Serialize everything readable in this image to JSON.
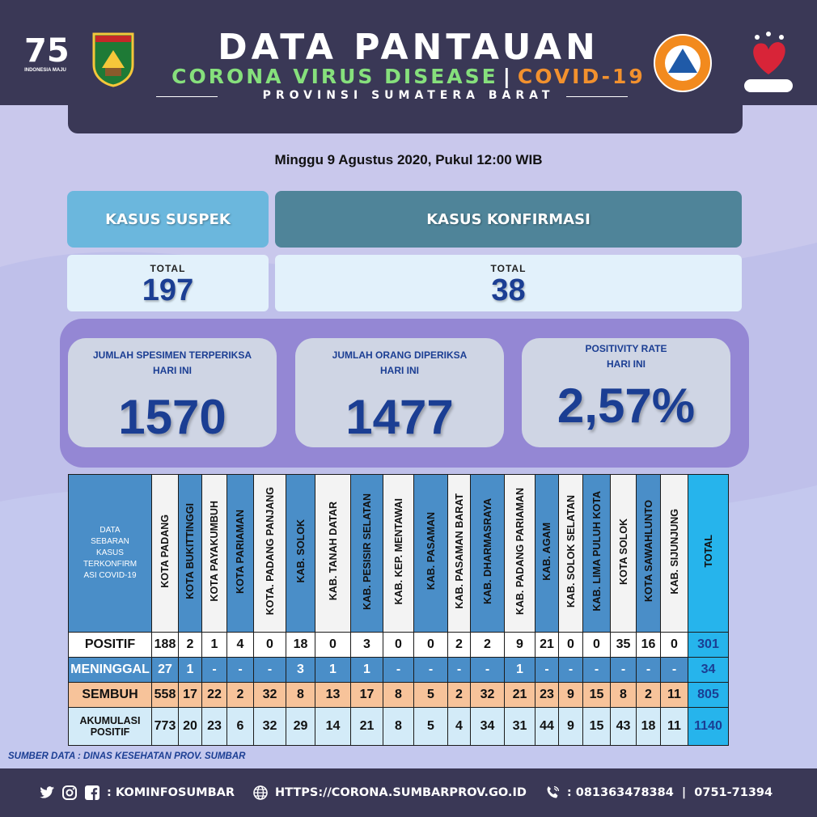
{
  "header": {
    "title": "DATA PANTAUAN",
    "subtitle_a": "CORONA VIRUS DISEASE",
    "subtitle_sep": "|",
    "subtitle_b": "COVID-19",
    "province": "PROVINSI SUMATERA BARAT",
    "logo_left_number": "75",
    "logo_left_caption": "INDONESIA MAJU",
    "logo_sumbar_caption": "SUMATERA BARAT",
    "logo_bpbd_caption": "BPBD",
    "logo_bbi_caption": "BANGGA BUATAN INDONESIA"
  },
  "date": "Minggu 9 Agustus 2020, Pukul 12:00 WIB",
  "suspek": {
    "label": "KASUS SUSPEK",
    "total_label": "TOTAL",
    "total": "197"
  },
  "konfirmasi": {
    "label": "KASUS KONFIRMASI",
    "total_label": "TOTAL",
    "total": "38"
  },
  "stats": [
    {
      "label1": "JUMLAH SPESIMEN TERPERIKSA",
      "label2": "HARI INI",
      "value": "1570"
    },
    {
      "label1": "JUMLAH ORANG DIPERIKSA",
      "label2": "HARI INI",
      "value": "1477"
    },
    {
      "label1": "POSITIVITY RATE",
      "label2": "HARI INI",
      "value": "2,57%"
    }
  ],
  "table": {
    "corner_lines": [
      "DATA",
      "SEBARAN",
      "KASUS",
      "TERKONFIRM",
      "ASI COVID-19"
    ],
    "regions": [
      "KOTA PADANG",
      "KOTA BUKITTINGGI",
      "KOTA PAYAKUMBUH",
      "KOTA PARIAMAN",
      "KOTA. PADANG PANJANG",
      "KAB. SOLOK",
      "KAB. TANAH DATAR",
      "KAB. PESISIR SELATAN",
      "KAB. KEP. MENTAWAI",
      "KAB. PASAMAN",
      "KAB. PASAMAN BARAT",
      "KAB. DHARMASRAYA",
      "KAB. PADANG PARIAMAN",
      "KAB. AGAM",
      "KAB. SOLOK SELATAN",
      "KAB. LIMA PULUH KOTA",
      "KOTA SOLOK",
      "KOTA SAWAHLUNTO",
      "KAB. SIJUNJUNG",
      "TOTAL"
    ],
    "rows": [
      {
        "label": "POSITIF",
        "values": [
          "188",
          "2",
          "1",
          "4",
          "0",
          "18",
          "0",
          "3",
          "0",
          "0",
          "2",
          "2",
          "9",
          "21",
          "0",
          "0",
          "35",
          "16",
          "0",
          "301"
        ]
      },
      {
        "label": "MENINGGAL",
        "values": [
          "27",
          "1",
          "-",
          "-",
          "-",
          "3",
          "1",
          "1",
          "-",
          "-",
          "-",
          "-",
          "1",
          "-",
          "-",
          "-",
          "-",
          "-",
          "-",
          "34"
        ]
      },
      {
        "label": "SEMBUH",
        "values": [
          "558",
          "17",
          "22",
          "2",
          "32",
          "8",
          "13",
          "17",
          "8",
          "5",
          "2",
          "32",
          "21",
          "23",
          "9",
          "15",
          "8",
          "2",
          "11",
          "805"
        ]
      },
      {
        "label": "AKUMULASI POSITIF",
        "values": [
          "773",
          "20",
          "23",
          "6",
          "32",
          "29",
          "14",
          "21",
          "8",
          "5",
          "4",
          "34",
          "31",
          "44",
          "9",
          "15",
          "43",
          "18",
          "11",
          "1140"
        ]
      }
    ]
  },
  "source": "SUMBER DATA : DINAS KESEHATAN PROV. SUMBAR",
  "footer": {
    "social": ": KOMINFOSUMBAR",
    "website": "HTTPS://CORONA.SUMBARPROV.GO.ID",
    "phone": ": 081363478384  |  0751-71394"
  },
  "colors": {
    "header_bg": "#3a3856",
    "accent_blue": "#1b3e93",
    "suspek_blue": "#6bb7dd",
    "konfirmasi_teal": "#4f8499",
    "panel_purple": "#9487d4",
    "total_cyan": "#26b4ec",
    "meninggal_blue": "#4a8ec8",
    "sembuh_peach": "#f7c39a"
  }
}
